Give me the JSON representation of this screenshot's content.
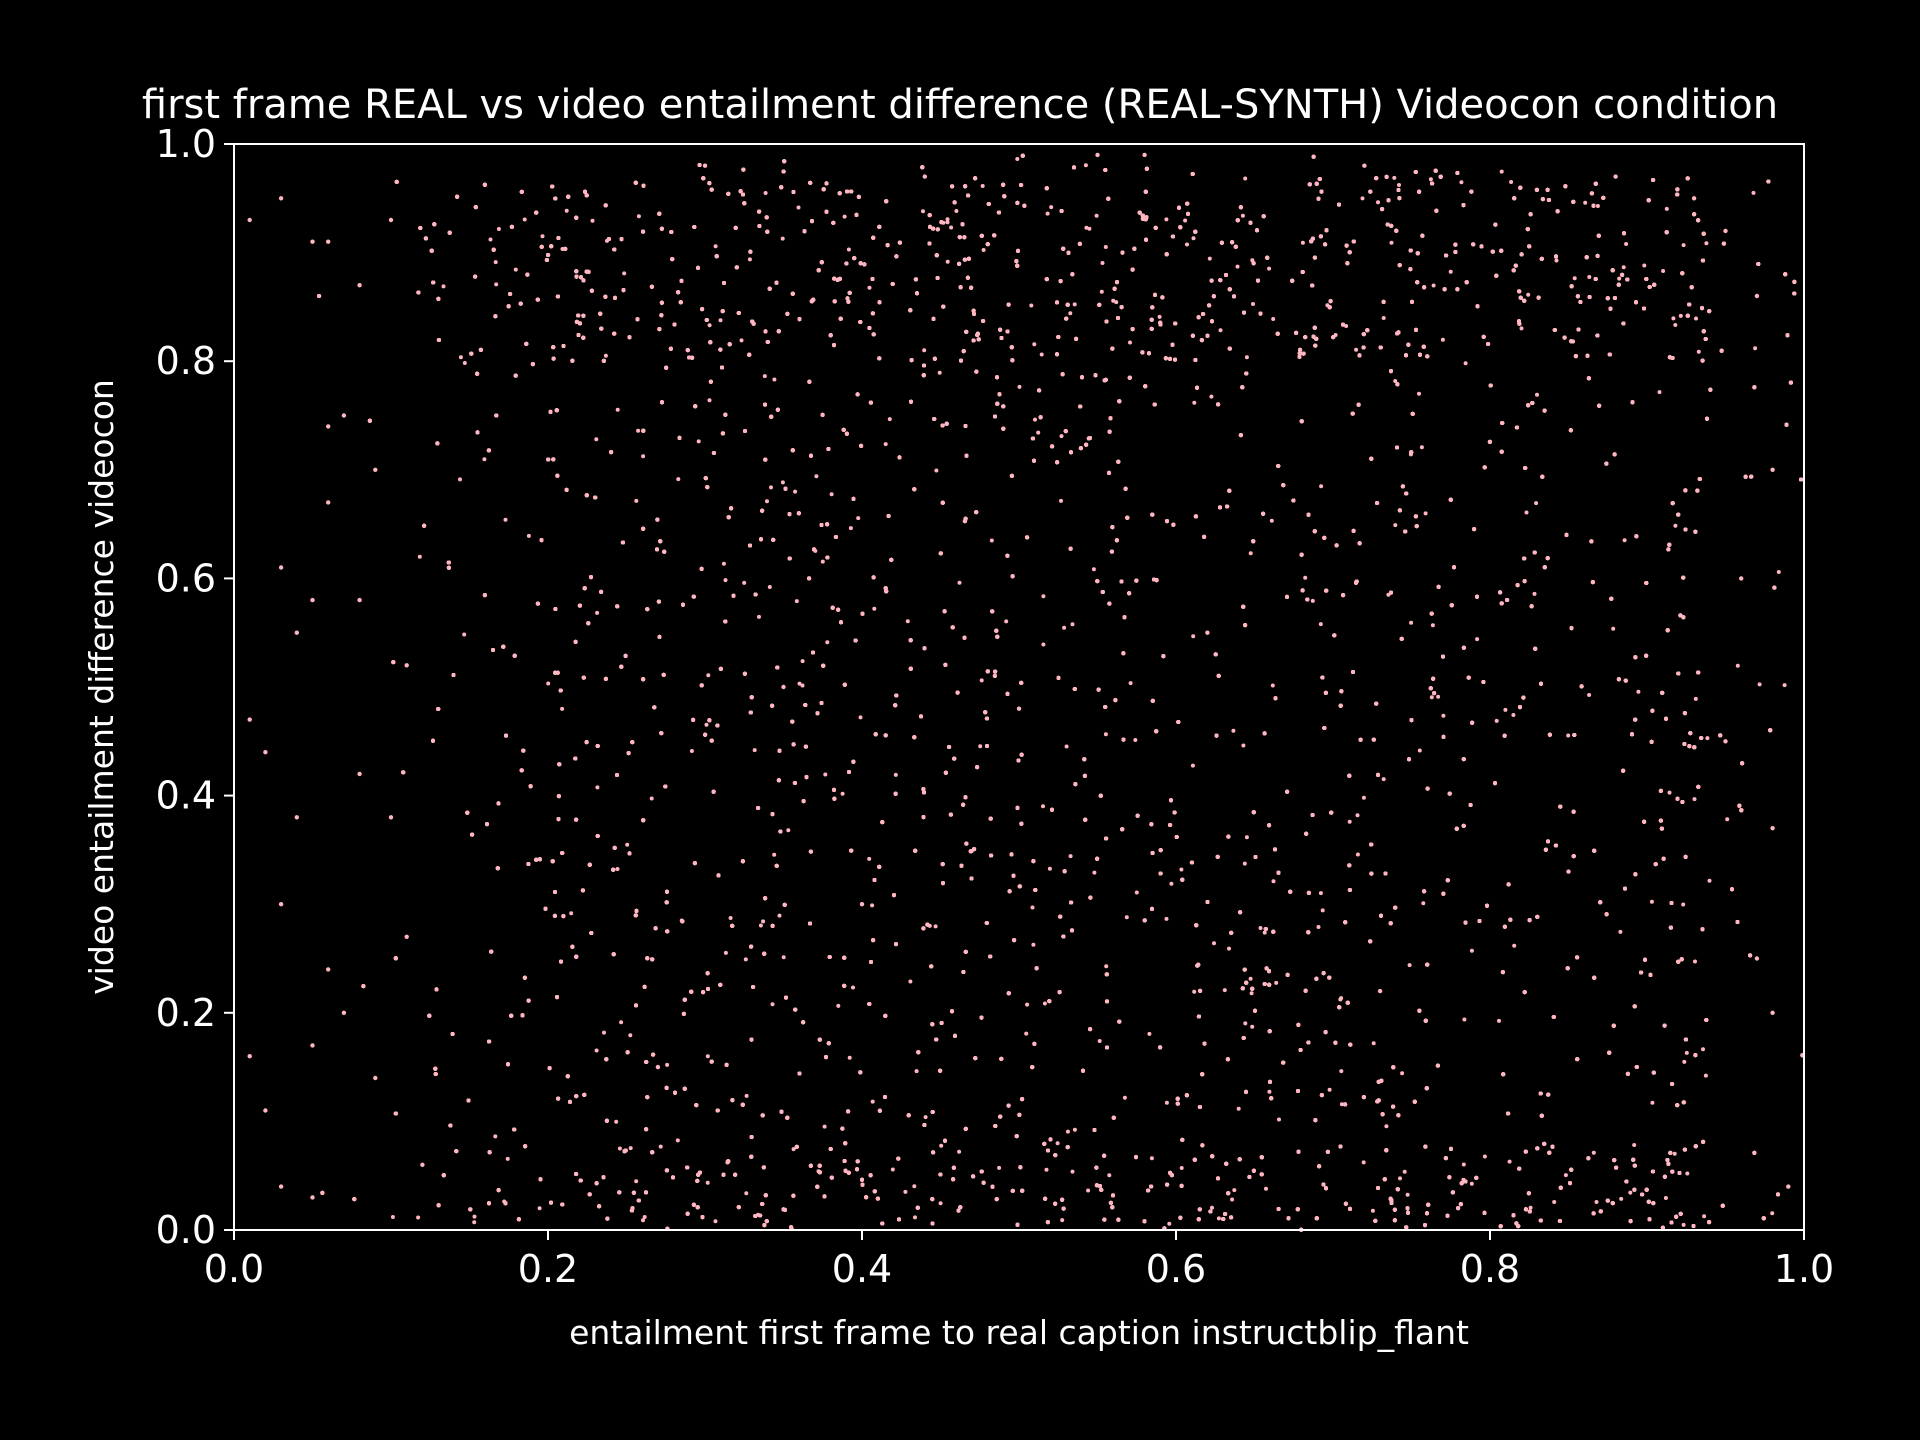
{
  "chart_data": {
    "type": "scatter",
    "title": "first frame REAL vs video entailment difference (REAL-SYNTH) Videocon condition",
    "xlabel": "entailment first frame to real caption instructblip_flant",
    "ylabel": "video entailment difference videocon",
    "xlim": [
      0.0,
      1.0
    ],
    "ylim": [
      0.0,
      1.0
    ],
    "x_ticks": [
      "0.0",
      "0.2",
      "0.4",
      "0.6",
      "0.8",
      "1.0"
    ],
    "y_ticks": [
      "0.0",
      "0.2",
      "0.4",
      "0.6",
      "0.8",
      "1.0"
    ],
    "grid": false,
    "legend": "none",
    "marker_color": "#ffb6c1",
    "background_color": "#000000",
    "axis_color": "#ffffff",
    "series": [
      {
        "description": "dense point cloud, approx. 20000 points",
        "points": [
          [
            0.01,
            0.93
          ],
          [
            0.03,
            0.95
          ],
          [
            0.05,
            0.91
          ],
          [
            0.06,
            0.91
          ],
          [
            0.08,
            0.87
          ],
          [
            0.06,
            0.74
          ],
          [
            0.07,
            0.75
          ],
          [
            0.06,
            0.67
          ],
          [
            0.05,
            0.58
          ],
          [
            0.03,
            0.61
          ],
          [
            0.04,
            0.55
          ],
          [
            0.02,
            0.44
          ],
          [
            0.01,
            0.47
          ],
          [
            0.04,
            0.38
          ],
          [
            0.03,
            0.3
          ],
          [
            0.06,
            0.24
          ],
          [
            0.07,
            0.2
          ],
          [
            0.05,
            0.17
          ],
          [
            0.01,
            0.16
          ],
          [
            0.02,
            0.11
          ],
          [
            0.03,
            0.04
          ],
          [
            0.05,
            0.03
          ],
          [
            0.09,
            0.14
          ],
          [
            0.08,
            0.42
          ],
          [
            0.08,
            0.58
          ],
          [
            0.09,
            0.7
          ],
          [
            0.1,
            0.93
          ],
          [
            0.11,
            0.52
          ],
          [
            0.1,
            0.38
          ],
          [
            0.11,
            0.27
          ],
          [
            0.12,
            0.06
          ],
          [
            0.98,
            0.37
          ],
          [
            0.98,
            0.7
          ],
          [
            0.97,
            0.86
          ],
          [
            0.95,
            0.92
          ],
          [
            0.98,
            0.2
          ],
          [
            0.97,
            0.25
          ],
          [
            0.99,
            0.04
          ],
          [
            0.96,
            0.6
          ],
          [
            0.95,
            0.45
          ],
          [
            0.3,
            0.98
          ],
          [
            0.55,
            0.99
          ],
          [
            0.58,
            0.99
          ],
          [
            0.44,
            0.97
          ],
          [
            0.72,
            0.98
          ],
          [
            0.88,
            0.97
          ],
          [
            0.93,
            0.95
          ],
          [
            0.35,
            0.5
          ],
          [
            0.5,
            0.48
          ],
          [
            0.62,
            0.55
          ],
          [
            0.73,
            0.22
          ],
          [
            0.27,
            0.15
          ],
          [
            0.4,
            0.3
          ],
          [
            0.85,
            0.33
          ]
        ]
      }
    ]
  }
}
